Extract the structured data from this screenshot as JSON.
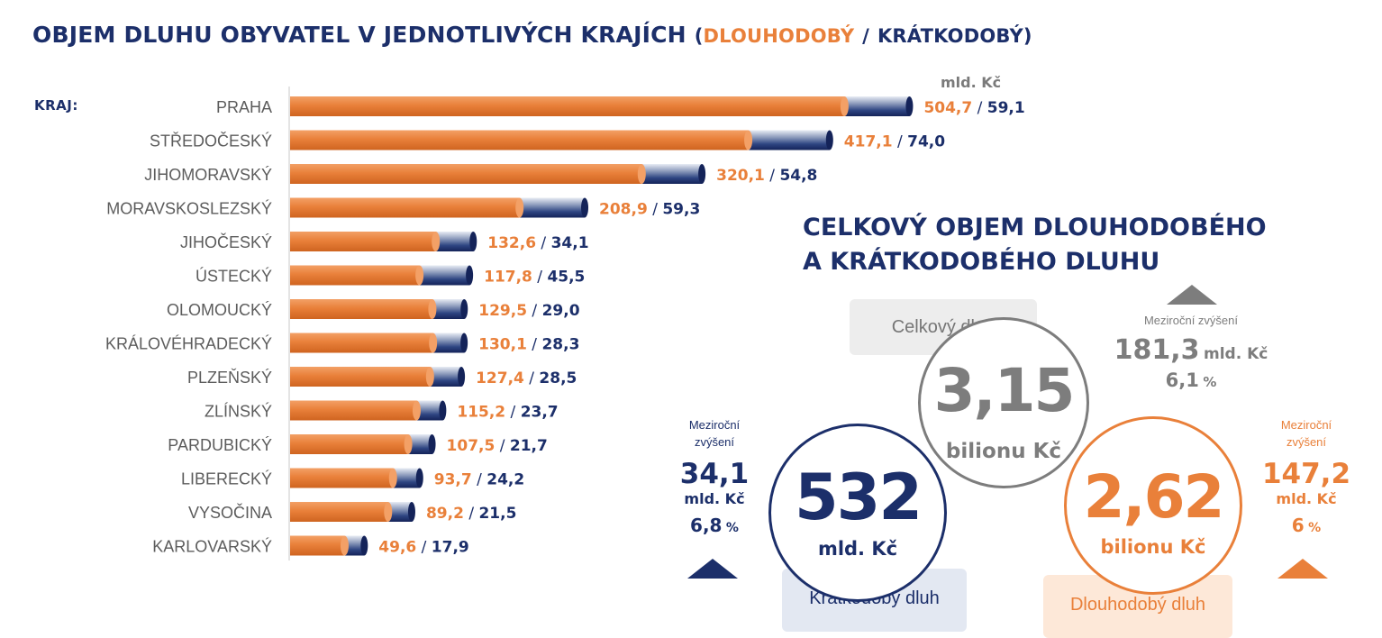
{
  "title": {
    "main": "OBJEM DLUHU OBYVATEL V JEDNOTLIVÝCH KRAJÍCH",
    "open_paren": "(",
    "long_label": "DLOUHODOBÝ",
    "slash": "/",
    "short_label": "KRÁTKODOBÝ",
    "close_paren": ")"
  },
  "kraj_label": "KRAJ:",
  "unit": "mld. Kč",
  "colors": {
    "navy": "#1c2f6a",
    "orange": "#e9803a",
    "gray": "#7d7d7d"
  },
  "chart_data": {
    "type": "bar",
    "stacked": true,
    "orientation": "horizontal",
    "categories": [
      "PRAHA",
      "STŘEDOČESKÝ",
      "JIHOMORAVSKÝ",
      "MORAVSKOSLEZSKÝ",
      "JIHOČESKÝ",
      "ÚSTECKÝ",
      "OLOMOUCKÝ",
      "KRÁLOVÉHRADECKÝ",
      "PLZEŇSKÝ",
      "ZLÍNSKÝ",
      "PARDUBICKÝ",
      "LIBERECKÝ",
      "VYSOČINA",
      "KARLOVARSKÝ"
    ],
    "series": [
      {
        "name": "DLOUHODOBÝ",
        "color": "#e9803a",
        "values": [
          504.7,
          417.1,
          320.1,
          208.9,
          132.6,
          117.8,
          129.5,
          130.1,
          127.4,
          115.2,
          107.5,
          93.7,
          89.2,
          49.6
        ],
        "labels": [
          "504,7",
          "417,1",
          "320,1",
          "208,9",
          "132,6",
          "117,8",
          "129,5",
          "130,1",
          "127,4",
          "115,2",
          "107,5",
          "93,7",
          "89,2",
          "49,6"
        ]
      },
      {
        "name": "KRÁTKODOBÝ",
        "color": "#1c2f6a",
        "values": [
          59.1,
          74.0,
          54.8,
          59.3,
          34.1,
          45.5,
          29.0,
          28.3,
          28.5,
          23.7,
          21.7,
          24.2,
          21.5,
          17.9
        ],
        "labels": [
          "59,1",
          "74,0",
          "54,8",
          "59,3",
          "34,1",
          "45,5",
          "29,0",
          "28,3",
          "28,5",
          "23,7",
          "21,7",
          "24,2",
          "21,5",
          "17,9"
        ]
      }
    ],
    "label_separator": "/",
    "grid": false
  },
  "summary": {
    "title_line1": "CELKOVÝ OBJEM DLOUHODOBÉHO",
    "title_line2": "A KRÁTKODOBÉHO DLUHU",
    "total": {
      "label": "Celkový dluh",
      "value": "3,15",
      "unit": "bilionu Kč",
      "yoy_label": "Meziroční zvýšení",
      "yoy_value": "181,3",
      "yoy_unit": "mld. Kč",
      "yoy_pct": "6,1",
      "pct_sign": "%"
    },
    "short": {
      "label": "Krátkodobý dluh",
      "value": "532",
      "unit": "mld. Kč",
      "yoy_label_1": "Meziroční",
      "yoy_label_2": "zvýšení",
      "yoy_value": "34,1",
      "yoy_unit": "mld. Kč",
      "yoy_pct": "6,8",
      "pct_sign": "%"
    },
    "long": {
      "label": "Dlouhodobý dluh",
      "value": "2,62",
      "unit": "bilionu Kč",
      "yoy_label_1": "Meziroční",
      "yoy_label_2": "zvýšení",
      "yoy_value": "147,2",
      "yoy_unit": "mld. Kč",
      "yoy_pct": "6",
      "pct_sign": "%"
    }
  }
}
